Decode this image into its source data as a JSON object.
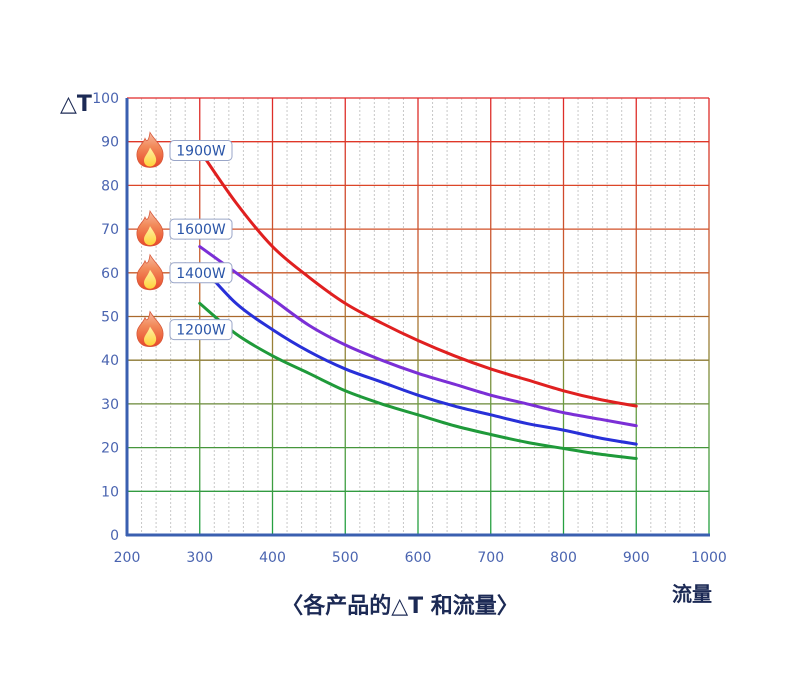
{
  "chart_data": {
    "type": "line",
    "title": "〈各产品的△T 和流量〉",
    "xlabel": "流量",
    "ylabel": "△T",
    "xlim": [
      200,
      1000
    ],
    "ylim": [
      0,
      100
    ],
    "xticks": [
      200,
      300,
      400,
      500,
      600,
      700,
      800,
      900,
      1000
    ],
    "yticks": [
      0,
      10,
      20,
      30,
      40,
      50,
      60,
      70,
      80,
      90,
      100
    ],
    "x": [
      300,
      350,
      400,
      450,
      500,
      550,
      600,
      650,
      700,
      750,
      800,
      850,
      900
    ],
    "series": [
      {
        "name": "1900W",
        "color": "#e02020",
        "values": [
          88,
          76,
          66,
          59,
          53,
          48.5,
          44.5,
          41,
          38,
          35.5,
          33,
          31,
          29.5
        ]
      },
      {
        "name": "1600W",
        "color": "#7b2fd6",
        "values": [
          66,
          60,
          54,
          48,
          43.5,
          40,
          37,
          34.5,
          32,
          30,
          28,
          26.5,
          25
        ]
      },
      {
        "name": "1400W",
        "color": "#2830d8",
        "values": [
          62,
          53,
          47,
          42,
          38,
          35,
          32,
          29.5,
          27.5,
          25.5,
          24,
          22.2,
          20.8
        ]
      },
      {
        "name": "1200W",
        "color": "#1f9a3a",
        "values": [
          53,
          46,
          41,
          37,
          33,
          30,
          27.5,
          25,
          23,
          21.2,
          19.8,
          18.5,
          17.5
        ]
      }
    ],
    "legend": [
      "1900W",
      "1600W",
      "1400W",
      "1200W"
    ],
    "legend_values": [
      88,
      70,
      60,
      47
    ],
    "grid": true
  }
}
